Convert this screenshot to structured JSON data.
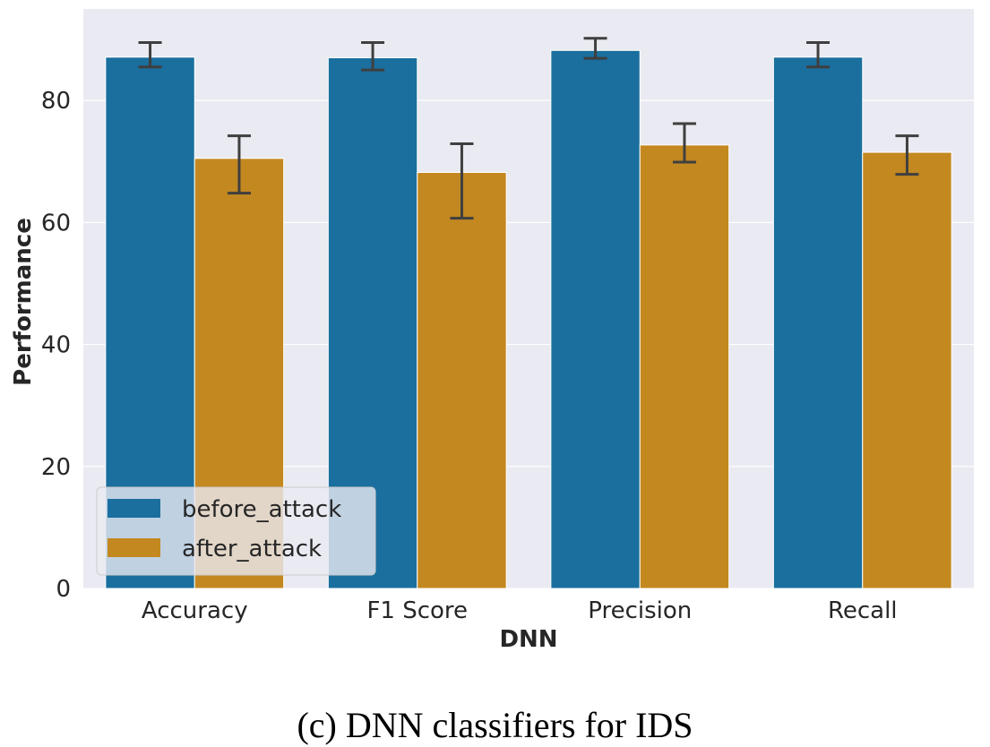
{
  "caption": "(c) DNN classifiers for IDS",
  "colors": {
    "background": "#eaeaf2",
    "before_attack": "#1a6f9e",
    "after_attack": "#c38820",
    "error_bar": "#3f3f3f"
  },
  "chart_data": {
    "type": "bar",
    "title": "",
    "xlabel": "DNN",
    "ylabel": "Performance",
    "categories": [
      "Accuracy",
      "F1 Score",
      "Precision",
      "Recall"
    ],
    "ylim": [
      0,
      95
    ],
    "yticks": [
      0,
      20,
      40,
      60,
      80
    ],
    "grid": true,
    "legend_position": "lower-left",
    "series": [
      {
        "name": "before_attack",
        "color": "#1a6f9e",
        "values": [
          87.1,
          87.0,
          88.2,
          87.1
        ],
        "error_low": [
          85.5,
          85.0,
          86.9,
          85.5
        ],
        "error_high": [
          89.5,
          89.5,
          90.2,
          89.5
        ]
      },
      {
        "name": "after_attack",
        "color": "#c38820",
        "values": [
          70.5,
          68.2,
          72.7,
          71.5
        ],
        "error_low": [
          64.8,
          60.7,
          69.9,
          67.9
        ],
        "error_high": [
          74.2,
          72.9,
          76.2,
          74.2
        ]
      }
    ]
  }
}
